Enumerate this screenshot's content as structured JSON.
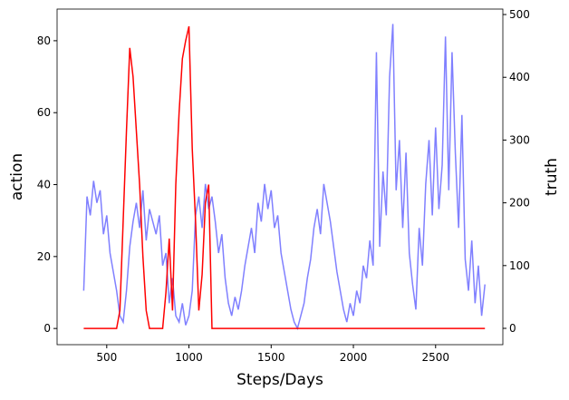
{
  "chart_data": {
    "type": "line",
    "xlabel": "Steps/Days",
    "ylabel": "action",
    "y2label": "truth",
    "x": [
      360,
      380,
      400,
      420,
      440,
      460,
      480,
      500,
      520,
      540,
      560,
      580,
      600,
      620,
      640,
      660,
      680,
      700,
      720,
      740,
      760,
      780,
      800,
      820,
      840,
      860,
      880,
      900,
      920,
      940,
      960,
      980,
      1000,
      1020,
      1040,
      1060,
      1080,
      1100,
      1120,
      1140,
      1160,
      1180,
      1200,
      1220,
      1240,
      1260,
      1280,
      1300,
      1320,
      1340,
      1360,
      1380,
      1400,
      1420,
      1440,
      1460,
      1480,
      1500,
      1520,
      1540,
      1560,
      1580,
      1600,
      1620,
      1640,
      1660,
      1680,
      1700,
      1720,
      1740,
      1760,
      1780,
      1800,
      1820,
      1840,
      1860,
      1880,
      1900,
      1920,
      1940,
      1960,
      1980,
      2000,
      2020,
      2040,
      2060,
      2080,
      2100,
      2120,
      2140,
      2160,
      2180,
      2200,
      2220,
      2240,
      2260,
      2280,
      2300,
      2320,
      2340,
      2360,
      2380,
      2400,
      2420,
      2440,
      2460,
      2480,
      2500,
      2520,
      2540,
      2560,
      2580,
      2600,
      2620,
      2640,
      2660,
      2680,
      2700,
      2720,
      2740,
      2760,
      2780,
      2800
    ],
    "series": [
      {
        "color": "#ff0000",
        "values": [
          0,
          0,
          0,
          0,
          0,
          0,
          0,
          0,
          0,
          0,
          0,
          5,
          30,
          55,
          78,
          70,
          55,
          40,
          20,
          5,
          0,
          0,
          0,
          0,
          0,
          10,
          25,
          5,
          40,
          60,
          75,
          80,
          84,
          50,
          30,
          5,
          15,
          35,
          40,
          0,
          0,
          0,
          0,
          0,
          0,
          0,
          0,
          0,
          0,
          0,
          0,
          0,
          0,
          0,
          0,
          0,
          0,
          0,
          0,
          0,
          0,
          0,
          0,
          0,
          0,
          0,
          0,
          0,
          0,
          0,
          0,
          0,
          0,
          0,
          0,
          0,
          0,
          0,
          0,
          0,
          0,
          0,
          0,
          0,
          0,
          0,
          0,
          0,
          0,
          0,
          0,
          0,
          0,
          0,
          0,
          0,
          0,
          0,
          0,
          0,
          0,
          0,
          0,
          0,
          0,
          0,
          0,
          0,
          0,
          0,
          0,
          0,
          0,
          0,
          0,
          0,
          0,
          0,
          0,
          0,
          0,
          0,
          0
        ]
      },
      {
        "color": "#8080ff",
        "axis": "y2",
        "values": [
          60,
          210,
          180,
          235,
          200,
          220,
          150,
          180,
          120,
          90,
          60,
          20,
          10,
          60,
          130,
          170,
          200,
          160,
          220,
          140,
          190,
          170,
          150,
          180,
          100,
          120,
          40,
          80,
          20,
          10,
          40,
          5,
          20,
          60,
          180,
          210,
          160,
          230,
          190,
          210,
          170,
          120,
          150,
          80,
          40,
          20,
          50,
          30,
          60,
          100,
          130,
          160,
          120,
          200,
          170,
          230,
          190,
          220,
          160,
          180,
          120,
          90,
          60,
          30,
          10,
          0,
          20,
          40,
          80,
          110,
          160,
          190,
          150,
          230,
          200,
          170,
          130,
          90,
          60,
          30,
          10,
          40,
          20,
          60,
          40,
          100,
          80,
          140,
          100,
          440,
          130,
          250,
          180,
          400,
          485,
          220,
          300,
          160,
          280,
          120,
          70,
          30,
          160,
          100,
          230,
          300,
          180,
          320,
          190,
          260,
          465,
          220,
          440,
          280,
          160,
          340,
          110,
          60,
          140,
          40,
          100,
          20,
          70
        ]
      }
    ],
    "xlim": [
      198,
      2909
    ],
    "xticks": [
      500,
      1000,
      1500,
      2000,
      2500
    ],
    "ylim": [
      -4.5,
      88.8
    ],
    "yticks": [
      0,
      20,
      40,
      60,
      80
    ],
    "y2lim": [
      -26,
      508.7
    ],
    "y2ticks": [
      0,
      100,
      200,
      300,
      400,
      500
    ]
  }
}
